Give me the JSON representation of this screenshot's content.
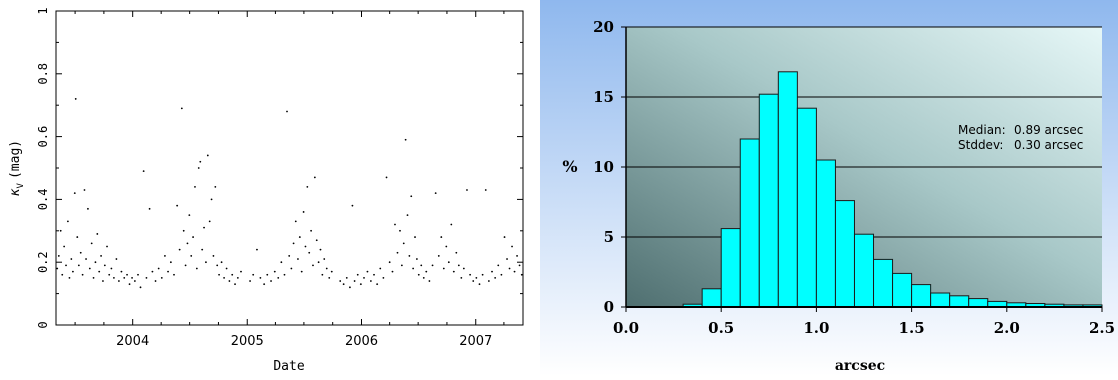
{
  "chart_data": [
    {
      "type": "scatter",
      "title": "",
      "xlabel": "Date",
      "ylabel_symbol": "κ",
      "ylabel_sub": "V",
      "ylabel_unit": "(mag)",
      "x_range": [
        "2003-05-01",
        "2007-06-01"
      ],
      "ylim": [
        0,
        1
      ],
      "x_ticks": [
        {
          "label": "2004",
          "date": "2004-01-01"
        },
        {
          "label": "2005",
          "date": "2005-01-01"
        },
        {
          "label": "2006",
          "date": "2006-01-01"
        },
        {
          "label": "2007",
          "date": "2007-01-01"
        }
      ],
      "y_ticks": [
        {
          "label": "0",
          "value": 0
        },
        {
          "label": "0.2",
          "value": 0.2
        },
        {
          "label": "0.4",
          "value": 0.4
        },
        {
          "label": "0.6",
          "value": 0.6
        },
        {
          "label": "0.8",
          "value": 0.8
        },
        {
          "label": "1",
          "value": 1
        }
      ],
      "grid": false,
      "points": [
        [
          "2003-05-05",
          0.18
        ],
        [
          "2003-05-10",
          0.22
        ],
        [
          "2003-05-16",
          0.3
        ],
        [
          "2003-05-21",
          0.16
        ],
        [
          "2003-05-27",
          0.25
        ],
        [
          "2003-06-02",
          0.19
        ],
        [
          "2003-06-08",
          0.33
        ],
        [
          "2003-06-13",
          0.15
        ],
        [
          "2003-06-19",
          0.21
        ],
        [
          "2003-06-24",
          0.17
        ],
        [
          "2003-06-30",
          0.42
        ],
        [
          "2003-07-03",
          0.72
        ],
        [
          "2003-07-08",
          0.28
        ],
        [
          "2003-07-13",
          0.19
        ],
        [
          "2003-07-19",
          0.23
        ],
        [
          "2003-07-25",
          0.16
        ],
        [
          "2003-07-31",
          0.43
        ],
        [
          "2003-08-05",
          0.21
        ],
        [
          "2003-08-11",
          0.37
        ],
        [
          "2003-08-17",
          0.18
        ],
        [
          "2003-08-23",
          0.26
        ],
        [
          "2003-08-29",
          0.15
        ],
        [
          "2003-09-04",
          0.2
        ],
        [
          "2003-09-10",
          0.29
        ],
        [
          "2003-09-16",
          0.17
        ],
        [
          "2003-09-22",
          0.22
        ],
        [
          "2003-09-28",
          0.14
        ],
        [
          "2003-10-04",
          0.19
        ],
        [
          "2003-10-11",
          0.25
        ],
        [
          "2003-10-18",
          0.16
        ],
        [
          "2003-10-25",
          0.18
        ],
        [
          "2003-11-02",
          0.15
        ],
        [
          "2003-11-10",
          0.21
        ],
        [
          "2003-11-18",
          0.14
        ],
        [
          "2003-11-26",
          0.17
        ],
        [
          "2003-12-05",
          0.15
        ],
        [
          "2003-12-14",
          0.16
        ],
        [
          "2003-12-22",
          0.13
        ],
        [
          "2003-12-30",
          0.15
        ],
        [
          "2004-01-08",
          0.14
        ],
        [
          "2004-01-18",
          0.16
        ],
        [
          "2004-01-26",
          0.12
        ],
        [
          "2004-02-05",
          0.49
        ],
        [
          "2004-02-14",
          0.15
        ],
        [
          "2004-02-24",
          0.37
        ],
        [
          "2004-03-04",
          0.17
        ],
        [
          "2004-03-14",
          0.14
        ],
        [
          "2004-03-24",
          0.18
        ],
        [
          "2004-04-03",
          0.15
        ],
        [
          "2004-04-13",
          0.22
        ],
        [
          "2004-04-23",
          0.17
        ],
        [
          "2004-05-02",
          0.2
        ],
        [
          "2004-05-12",
          0.16
        ],
        [
          "2004-05-22",
          0.38
        ],
        [
          "2004-05-30",
          0.24
        ],
        [
          "2004-06-06",
          0.69
        ],
        [
          "2004-06-12",
          0.3
        ],
        [
          "2004-06-18",
          0.19
        ],
        [
          "2004-06-24",
          0.26
        ],
        [
          "2004-06-30",
          0.35
        ],
        [
          "2004-07-06",
          0.22
        ],
        [
          "2004-07-12",
          0.28
        ],
        [
          "2004-07-18",
          0.44
        ],
        [
          "2004-07-24",
          0.18
        ],
        [
          "2004-07-30",
          0.5
        ],
        [
          "2004-08-04",
          0.52
        ],
        [
          "2004-08-10",
          0.24
        ],
        [
          "2004-08-16",
          0.31
        ],
        [
          "2004-08-22",
          0.2
        ],
        [
          "2004-08-28",
          0.54
        ],
        [
          "2004-09-03",
          0.33
        ],
        [
          "2004-09-09",
          0.4
        ],
        [
          "2004-09-15",
          0.22
        ],
        [
          "2004-09-21",
          0.44
        ],
        [
          "2004-09-27",
          0.19
        ],
        [
          "2004-10-03",
          0.16
        ],
        [
          "2004-10-11",
          0.2
        ],
        [
          "2004-10-19",
          0.15
        ],
        [
          "2004-10-27",
          0.18
        ],
        [
          "2004-11-05",
          0.14
        ],
        [
          "2004-11-14",
          0.16
        ],
        [
          "2004-11-23",
          0.13
        ],
        [
          "2004-12-02",
          0.15
        ],
        [
          "2004-12-12",
          0.17
        ],
        [
          "2005-01-10",
          0.14
        ],
        [
          "2005-01-20",
          0.16
        ],
        [
          "2005-02-01",
          0.24
        ],
        [
          "2005-02-12",
          0.15
        ],
        [
          "2005-02-24",
          0.13
        ],
        [
          "2005-03-06",
          0.16
        ],
        [
          "2005-03-18",
          0.14
        ],
        [
          "2005-03-30",
          0.17
        ],
        [
          "2005-04-10",
          0.15
        ],
        [
          "2005-04-20",
          0.2
        ],
        [
          "2005-04-30",
          0.16
        ],
        [
          "2005-05-08",
          0.68
        ],
        [
          "2005-05-15",
          0.22
        ],
        [
          "2005-05-22",
          0.18
        ],
        [
          "2005-05-29",
          0.26
        ],
        [
          "2005-06-05",
          0.33
        ],
        [
          "2005-06-12",
          0.21
        ],
        [
          "2005-06-18",
          0.28
        ],
        [
          "2005-06-24",
          0.17
        ],
        [
          "2005-06-30",
          0.36
        ],
        [
          "2005-07-06",
          0.25
        ],
        [
          "2005-07-12",
          0.44
        ],
        [
          "2005-07-18",
          0.23
        ],
        [
          "2005-07-24",
          0.3
        ],
        [
          "2005-07-30",
          0.19
        ],
        [
          "2005-08-05",
          0.47
        ],
        [
          "2005-08-11",
          0.27
        ],
        [
          "2005-08-17",
          0.2
        ],
        [
          "2005-08-23",
          0.24
        ],
        [
          "2005-08-29",
          0.16
        ],
        [
          "2005-09-04",
          0.21
        ],
        [
          "2005-09-12",
          0.18
        ],
        [
          "2005-09-20",
          0.15
        ],
        [
          "2005-09-28",
          0.17
        ],
        [
          "2005-10-25",
          0.14
        ],
        [
          "2005-11-05",
          0.13
        ],
        [
          "2005-11-15",
          0.15
        ],
        [
          "2005-11-25",
          0.12
        ],
        [
          "2005-12-03",
          0.38
        ],
        [
          "2005-12-10",
          0.14
        ],
        [
          "2005-12-20",
          0.16
        ],
        [
          "2005-12-30",
          0.13
        ],
        [
          "2006-01-09",
          0.15
        ],
        [
          "2006-01-20",
          0.17
        ],
        [
          "2006-01-31",
          0.14
        ],
        [
          "2006-02-10",
          0.16
        ],
        [
          "2006-02-20",
          0.13
        ],
        [
          "2006-03-02",
          0.18
        ],
        [
          "2006-03-12",
          0.15
        ],
        [
          "2006-03-22",
          0.47
        ],
        [
          "2006-04-01",
          0.2
        ],
        [
          "2006-04-10",
          0.17
        ],
        [
          "2006-04-18",
          0.32
        ],
        [
          "2006-04-26",
          0.23
        ],
        [
          "2006-05-04",
          0.3
        ],
        [
          "2006-05-10",
          0.19
        ],
        [
          "2006-05-16",
          0.26
        ],
        [
          "2006-05-22",
          0.59
        ],
        [
          "2006-05-28",
          0.35
        ],
        [
          "2006-06-03",
          0.22
        ],
        [
          "2006-06-09",
          0.41
        ],
        [
          "2006-06-15",
          0.18
        ],
        [
          "2006-06-21",
          0.28
        ],
        [
          "2006-06-27",
          0.21
        ],
        [
          "2006-07-03",
          0.16
        ],
        [
          "2006-07-11",
          0.19
        ],
        [
          "2006-07-19",
          0.15
        ],
        [
          "2006-07-27",
          0.17
        ],
        [
          "2006-08-06",
          0.14
        ],
        [
          "2006-08-16",
          0.19
        ],
        [
          "2006-08-26",
          0.42
        ],
        [
          "2006-09-05",
          0.22
        ],
        [
          "2006-09-13",
          0.28
        ],
        [
          "2006-09-21",
          0.18
        ],
        [
          "2006-09-29",
          0.25
        ],
        [
          "2006-10-07",
          0.2
        ],
        [
          "2006-10-15",
          0.32
        ],
        [
          "2006-10-23",
          0.17
        ],
        [
          "2006-10-31",
          0.23
        ],
        [
          "2006-11-08",
          0.19
        ],
        [
          "2006-11-16",
          0.15
        ],
        [
          "2006-11-24",
          0.18
        ],
        [
          "2006-12-04",
          0.43
        ],
        [
          "2006-12-14",
          0.16
        ],
        [
          "2006-12-24",
          0.14
        ],
        [
          "2007-01-03",
          0.15
        ],
        [
          "2007-01-13",
          0.13
        ],
        [
          "2007-01-23",
          0.16
        ],
        [
          "2007-02-02",
          0.43
        ],
        [
          "2007-02-12",
          0.14
        ],
        [
          "2007-02-22",
          0.17
        ],
        [
          "2007-03-04",
          0.15
        ],
        [
          "2007-03-14",
          0.19
        ],
        [
          "2007-03-24",
          0.16
        ],
        [
          "2007-04-03",
          0.28
        ],
        [
          "2007-04-11",
          0.21
        ],
        [
          "2007-04-19",
          0.18
        ],
        [
          "2007-04-27",
          0.25
        ],
        [
          "2007-05-05",
          0.17
        ],
        [
          "2007-05-13",
          0.22
        ],
        [
          "2007-05-21",
          0.19
        ],
        [
          "2007-05-28",
          0.16
        ]
      ]
    },
    {
      "type": "bar",
      "title": "",
      "xlabel": "arcsec",
      "ylabel": "%",
      "xlim": [
        0.0,
        2.5
      ],
      "ylim": [
        0,
        20
      ],
      "x_ticks": [
        "0.0",
        "0.5",
        "1.0",
        "1.5",
        "2.0",
        "2.5"
      ],
      "y_ticks": [
        "0",
        "5",
        "10",
        "15",
        "20"
      ],
      "grid": true,
      "bin_width": 0.1,
      "bins": [
        {
          "x": 0.35,
          "value": 0.2
        },
        {
          "x": 0.45,
          "value": 1.3
        },
        {
          "x": 0.55,
          "value": 5.6
        },
        {
          "x": 0.65,
          "value": 12.0
        },
        {
          "x": 0.75,
          "value": 15.2
        },
        {
          "x": 0.85,
          "value": 16.8
        },
        {
          "x": 0.95,
          "value": 14.2
        },
        {
          "x": 1.05,
          "value": 10.5
        },
        {
          "x": 1.15,
          "value": 7.6
        },
        {
          "x": 1.25,
          "value": 5.2
        },
        {
          "x": 1.35,
          "value": 3.4
        },
        {
          "x": 1.45,
          "value": 2.4
        },
        {
          "x": 1.55,
          "value": 1.6
        },
        {
          "x": 1.65,
          "value": 1.0
        },
        {
          "x": 1.75,
          "value": 0.8
        },
        {
          "x": 1.85,
          "value": 0.6
        },
        {
          "x": 1.95,
          "value": 0.4
        },
        {
          "x": 2.05,
          "value": 0.3
        },
        {
          "x": 2.15,
          "value": 0.25
        },
        {
          "x": 2.25,
          "value": 0.2
        },
        {
          "x": 2.35,
          "value": 0.15
        },
        {
          "x": 2.45,
          "value": 0.15
        }
      ],
      "annotations": [
        {
          "label": "Median:",
          "value": "0.89 arcsec"
        },
        {
          "label": "Stddev:",
          "value": "0.30 arcsec"
        }
      ],
      "colors": {
        "bar_fill": "#00ffff",
        "bar_stroke": "#1a1a1a",
        "grid": "#000000",
        "bg_outer_top": "#8fb8ee",
        "bg_outer_bottom": "#ffffff",
        "plot_light": "#d9f2f2",
        "plot_dark": "#4f6f70"
      }
    }
  ]
}
